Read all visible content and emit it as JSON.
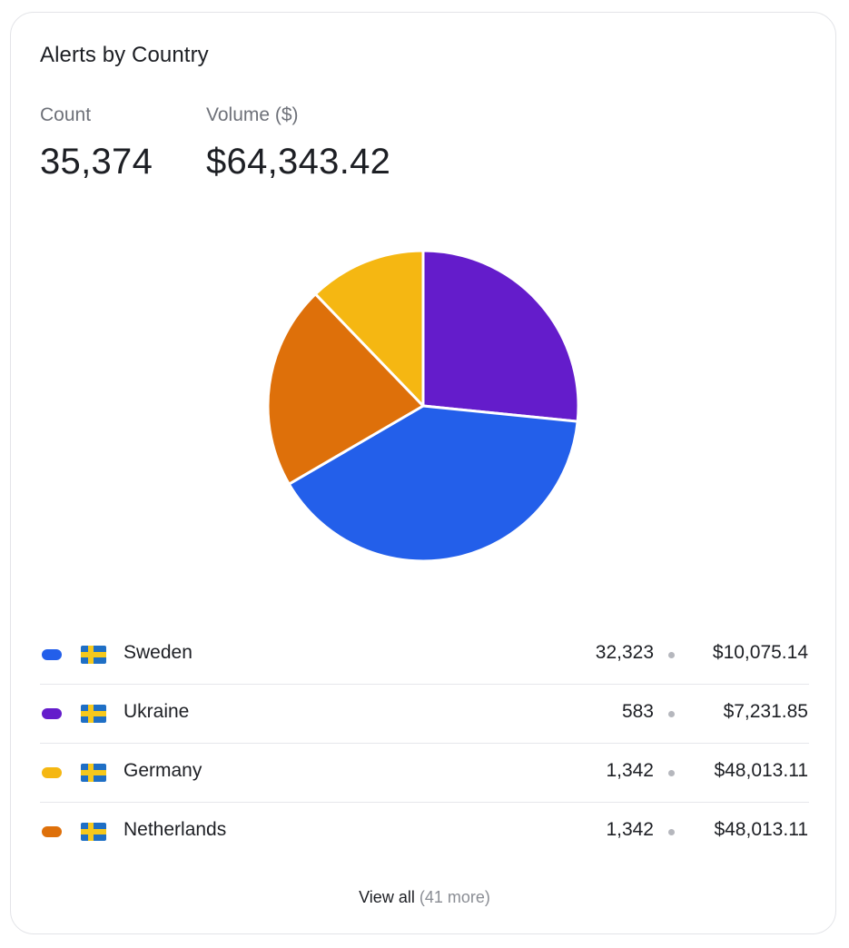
{
  "card": {
    "title": "Alerts by Country",
    "count_label": "Count",
    "count_value": "35,374",
    "volume_label": "Volume ($)",
    "volume_value": "$64,343.42"
  },
  "chart_data": {
    "type": "pie",
    "title": "",
    "slices": [
      {
        "label": "Ukraine",
        "value": 26.6,
        "color": "#641ccb"
      },
      {
        "label": "Sweden",
        "value": 40.0,
        "color": "#235fea"
      },
      {
        "label": "Netherlands",
        "value": 21.2,
        "color": "#de700a"
      },
      {
        "label": "Germany",
        "value": 12.2,
        "color": "#f5b712"
      }
    ],
    "legend_placement": "bottom"
  },
  "rows": [
    {
      "country": "Sweden",
      "count": "32,323",
      "volume": "$10,075.14",
      "color": "#235fea",
      "flag": "sweden-flag-icon"
    },
    {
      "country": "Ukraine",
      "count": "583",
      "volume": "$7,231.85",
      "color": "#641ccb",
      "flag": "sweden-flag-icon"
    },
    {
      "country": "Germany",
      "count": "1,342",
      "volume": "$48,013.11",
      "color": "#f5b712",
      "flag": "sweden-flag-icon"
    },
    {
      "country": "Netherlands",
      "count": "1,342",
      "volume": "$48,013.11",
      "color": "#de700a",
      "flag": "sweden-flag-icon"
    }
  ],
  "footer": {
    "view_all_label": "View all",
    "more_label": "(41 more)"
  }
}
